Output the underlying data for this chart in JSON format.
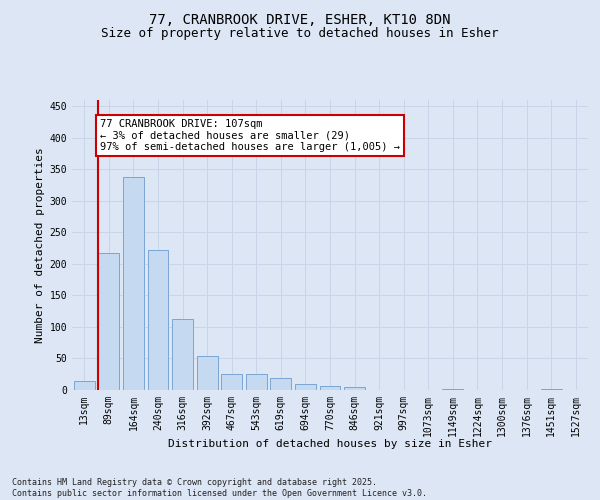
{
  "title_line1": "77, CRANBROOK DRIVE, ESHER, KT10 8DN",
  "title_line2": "Size of property relative to detached houses in Esher",
  "xlabel": "Distribution of detached houses by size in Esher",
  "ylabel": "Number of detached properties",
  "categories": [
    "13sqm",
    "89sqm",
    "164sqm",
    "240sqm",
    "316sqm",
    "392sqm",
    "467sqm",
    "543sqm",
    "619sqm",
    "694sqm",
    "770sqm",
    "846sqm",
    "921sqm",
    "997sqm",
    "1073sqm",
    "1149sqm",
    "1224sqm",
    "1300sqm",
    "1376sqm",
    "1451sqm",
    "1527sqm"
  ],
  "values": [
    15,
    218,
    338,
    222,
    112,
    54,
    26,
    26,
    19,
    10,
    6,
    4,
    0,
    0,
    0,
    1,
    0,
    0,
    0,
    2,
    0
  ],
  "bar_color": "#c5d9f1",
  "bar_edge_color": "#7aa6d4",
  "annotation_text": "77 CRANBROOK DRIVE: 107sqm\n← 3% of detached houses are smaller (29)\n97% of semi-detached houses are larger (1,005) →",
  "annotation_box_facecolor": "#ffffff",
  "annotation_box_edgecolor": "#cc0000",
  "redline_color": "#cc0000",
  "grid_color": "#c8d4e8",
  "background_color": "#dce6f5",
  "ylim": [
    0,
    460
  ],
  "yticks": [
    0,
    50,
    100,
    150,
    200,
    250,
    300,
    350,
    400,
    450
  ],
  "footnote": "Contains HM Land Registry data © Crown copyright and database right 2025.\nContains public sector information licensed under the Open Government Licence v3.0.",
  "title_fontsize": 10,
  "subtitle_fontsize": 9,
  "axis_label_fontsize": 8,
  "tick_fontsize": 7,
  "annotation_fontsize": 7.5,
  "footnote_fontsize": 6
}
